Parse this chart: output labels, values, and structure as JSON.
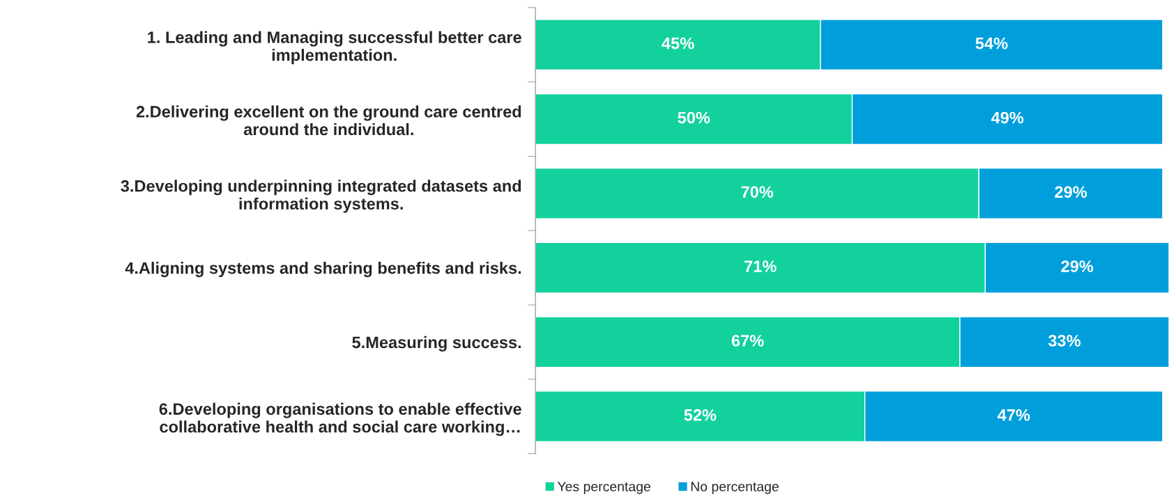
{
  "chart_data": {
    "type": "bar",
    "orientation": "horizontal",
    "stacked": true,
    "legend": "bottom",
    "grid": false,
    "categories": [
      "1. Leading and Managing successful better care\nimplementation.",
      "2.Delivering excellent on the ground care centred\naround the individual.",
      "3.Developing underpinning integrated datasets and\ninformation systems.",
      "4.Aligning systems and sharing benefits and risks.",
      "5.Measuring success.",
      "6.Developing organisations to enable effective\ncollaborative health and social care working…"
    ],
    "series": [
      {
        "name": "Yes percentage",
        "color": "#13d19d",
        "values": [
          45,
          50,
          70,
          71,
          67,
          52
        ],
        "value_labels": [
          "45%",
          "50%",
          "70%",
          "71%",
          "67%",
          "52%"
        ]
      },
      {
        "name": "No percentage",
        "color": "#009fdb",
        "values": [
          54,
          49,
          29,
          29,
          33,
          47
        ],
        "value_labels": [
          "54%",
          "49%",
          "29%",
          "29%",
          "33%",
          "47%"
        ]
      }
    ]
  }
}
